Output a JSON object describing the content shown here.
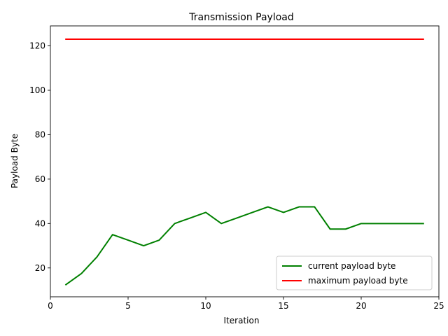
{
  "chart_data": {
    "type": "line",
    "title": "Transmission Payload",
    "xlabel": "Iteration",
    "ylabel": "Payload Byte",
    "xlim": [
      0,
      25
    ],
    "ylim": [
      7,
      129
    ],
    "xticks": [
      0,
      5,
      10,
      15,
      20,
      25
    ],
    "yticks": [
      20,
      40,
      60,
      80,
      100,
      120
    ],
    "grid": false,
    "legend_position": "lower right",
    "x": [
      1,
      2,
      3,
      4,
      5,
      6,
      7,
      8,
      9,
      10,
      11,
      12,
      13,
      14,
      15,
      16,
      17,
      18,
      19,
      20,
      21,
      22,
      23,
      24
    ],
    "series": [
      {
        "name": "current payload byte",
        "color": "#008000",
        "values": [
          12.5,
          17.5,
          25,
          35,
          32.5,
          30,
          32.5,
          40,
          42.5,
          45,
          40,
          42.5,
          45,
          47.5,
          45,
          47.5,
          47.5,
          37.5,
          37.5,
          40,
          40,
          40,
          40,
          40
        ]
      },
      {
        "name": "maximum payload byte",
        "color": "#ff0000",
        "values": [
          123,
          123,
          123,
          123,
          123,
          123,
          123,
          123,
          123,
          123,
          123,
          123,
          123,
          123,
          123,
          123,
          123,
          123,
          123,
          123,
          123,
          123,
          123,
          123
        ]
      }
    ]
  }
}
